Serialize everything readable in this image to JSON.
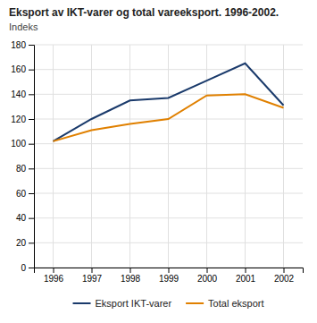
{
  "chart_data": {
    "type": "line",
    "title": "Eksport av IKT-varer og total vareeksport. 1996-2002.",
    "subtitle": "Indeks",
    "x": [
      1996,
      1997,
      1998,
      1999,
      2000,
      2001,
      2002
    ],
    "series": [
      {
        "name": "Eksport IKT-varer",
        "color": "#1a3a6b",
        "values": [
          102,
          120,
          135,
          137,
          151,
          165,
          131
        ]
      },
      {
        "name": "Total eksport",
        "color": "#e08000",
        "values": [
          102,
          111,
          116,
          120,
          139,
          140,
          129
        ]
      }
    ],
    "xlim": [
      1995.5,
      2002.5
    ],
    "xticks": [
      1996,
      1997,
      1998,
      1999,
      2000,
      2001,
      2002
    ],
    "ylim": [
      0,
      180
    ],
    "yticks": [
      0,
      20,
      40,
      60,
      80,
      100,
      120,
      140,
      160,
      180
    ],
    "grid": true,
    "legend": "bottom"
  }
}
